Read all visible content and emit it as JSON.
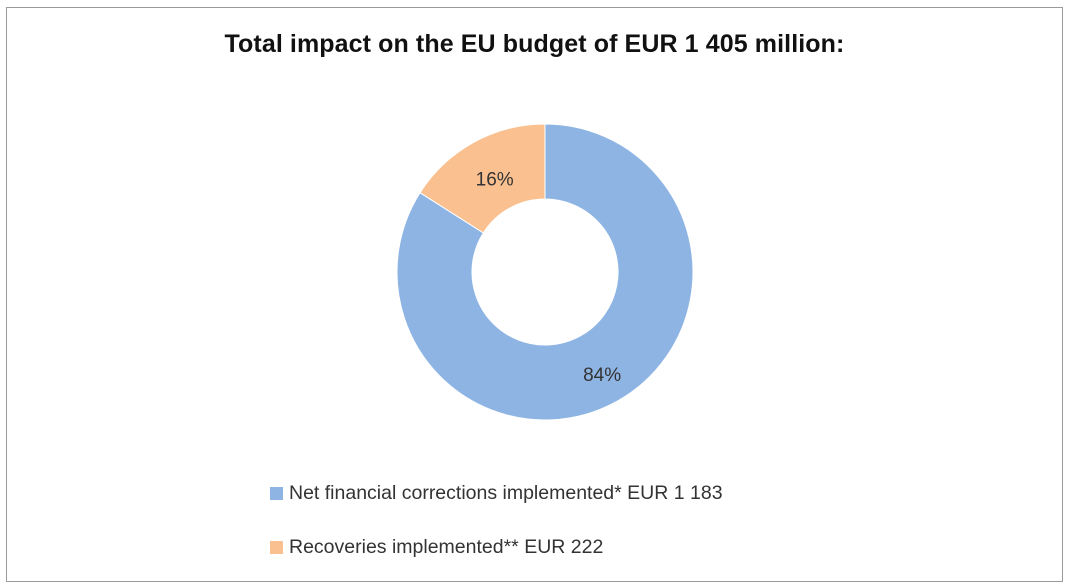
{
  "chart_data": {
    "type": "pie",
    "title": "Total impact on the EU budget of EUR 1 405 million:",
    "donut": true,
    "categories": [
      "Net financial corrections implemented* EUR 1 183",
      "Recoveries implemented** EUR 222"
    ],
    "values": [
      84,
      16
    ],
    "data_labels": [
      "84%",
      "16%"
    ],
    "colors": [
      "#8EB4E3",
      "#FAC08F"
    ],
    "legend_position": "bottom"
  }
}
